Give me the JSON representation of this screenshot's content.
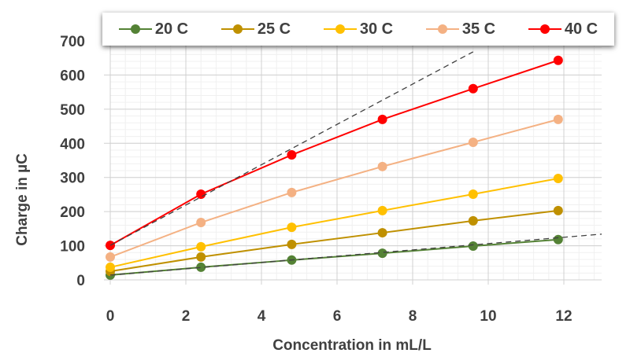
{
  "chart_data": {
    "type": "line",
    "xlabel": "Concentration in mL/L",
    "ylabel": "Charge in µC",
    "xlim": [
      0,
      13
    ],
    "ylim": [
      0,
      700
    ],
    "xticks": [
      0,
      2,
      4,
      6,
      8,
      10,
      12
    ],
    "yticks": [
      0,
      100,
      200,
      300,
      400,
      500,
      600,
      700
    ],
    "grid": true,
    "legend": "top",
    "x": [
      0,
      2.4,
      4.8,
      7.2,
      9.6,
      11.85
    ],
    "series": [
      {
        "name": "20 C",
        "color": "#548235",
        "values": [
          14,
          37,
          58,
          78,
          99,
          118
        ]
      },
      {
        "name": "25 C",
        "color": "#BF9000",
        "values": [
          25,
          67,
          104,
          138,
          173,
          203
        ]
      },
      {
        "name": "30 C",
        "color": "#FFC000",
        "values": [
          37,
          97,
          154,
          203,
          251,
          297
        ]
      },
      {
        "name": "35 C",
        "color": "#F4B183",
        "values": [
          67,
          168,
          256,
          332,
          403,
          470
        ]
      },
      {
        "name": "40 C",
        "color": "#FF0000",
        "values": [
          101,
          251,
          366,
          470,
          560,
          643
        ]
      }
    ],
    "trendlines": [
      {
        "style": "dashed",
        "color": "#404040",
        "from": [
          0,
          101
        ],
        "to": [
          9.6,
          668
        ]
      },
      {
        "style": "dashed",
        "color": "#404040",
        "from": [
          0,
          14
        ],
        "to": [
          13,
          134
        ]
      }
    ]
  }
}
